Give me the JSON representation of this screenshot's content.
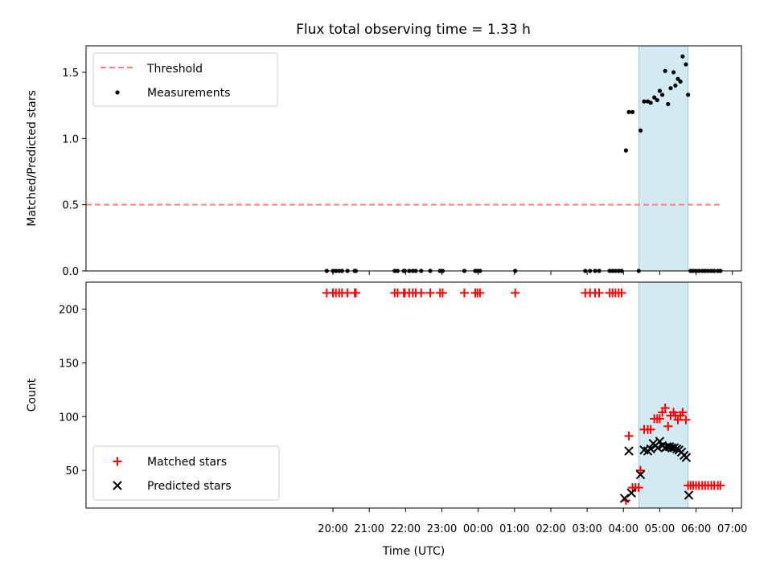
{
  "title": "Flux total observing time = 1.33 h",
  "colors": {
    "threshold": "#ff8080",
    "measurement": "#000000",
    "matched": "#ff0000",
    "predicted": "#000000",
    "span": "#add8e6"
  },
  "chart_data": [
    {
      "type": "scatter",
      "panel": "top",
      "ylabel": "Matched/Predicted stars",
      "xlabel": "",
      "ylim": [
        0,
        1.7
      ],
      "yticks": [
        0.0,
        0.5,
        1.0,
        1.5
      ],
      "ytick_labels": [
        "0.0",
        "0.5",
        "1.0",
        "1.5"
      ],
      "x_unit": "hours since 00:00 UTC",
      "xlim": [
        -10.8,
        7.25
      ],
      "legend_position": "upper-left",
      "highlight_span": [
        4.43,
        5.78
      ],
      "threshold": {
        "name": "Threshold",
        "y": 0.5,
        "x_range": [
          -10.8,
          6.7
        ]
      },
      "series": [
        {
          "name": "Measurements",
          "points": [
            [
              -4.17,
              0
            ],
            [
              -4.0,
              0
            ],
            [
              -3.92,
              0
            ],
            [
              -3.83,
              0
            ],
            [
              -3.75,
              0
            ],
            [
              -3.6,
              0
            ],
            [
              -3.4,
              0
            ],
            [
              -3.37,
              0
            ],
            [
              -2.3,
              0
            ],
            [
              -2.22,
              0
            ],
            [
              -2.05,
              0
            ],
            [
              -2.02,
              0
            ],
            [
              -1.9,
              0
            ],
            [
              -1.8,
              0
            ],
            [
              -1.72,
              0
            ],
            [
              -1.57,
              0
            ],
            [
              -1.32,
              0
            ],
            [
              -1.05,
              0
            ],
            [
              -0.98,
              0
            ],
            [
              -0.38,
              0
            ],
            [
              -0.08,
              0
            ],
            [
              -0.02,
              0
            ],
            [
              0.05,
              0
            ],
            [
              1.02,
              0
            ],
            [
              2.95,
              0
            ],
            [
              3.08,
              0
            ],
            [
              3.22,
              0
            ],
            [
              3.33,
              0
            ],
            [
              3.62,
              0
            ],
            [
              3.7,
              0
            ],
            [
              3.78,
              0
            ],
            [
              3.87,
              0
            ],
            [
              3.95,
              0
            ],
            [
              4.42,
              0
            ],
            [
              4.07,
              0.91
            ],
            [
              4.15,
              1.2
            ],
            [
              4.25,
              1.2
            ],
            [
              4.47,
              1.06
            ],
            [
              4.57,
              1.28
            ],
            [
              4.67,
              1.28
            ],
            [
              4.75,
              1.27
            ],
            [
              4.85,
              1.31
            ],
            [
              4.93,
              1.29
            ],
            [
              5.0,
              1.36
            ],
            [
              5.07,
              1.33
            ],
            [
              5.15,
              1.51
            ],
            [
              5.23,
              1.26
            ],
            [
              5.3,
              1.38
            ],
            [
              5.38,
              1.5
            ],
            [
              5.43,
              1.4
            ],
            [
              5.5,
              1.45
            ],
            [
              5.57,
              1.43
            ],
            [
              5.63,
              1.62
            ],
            [
              5.72,
              1.56
            ],
            [
              5.78,
              1.33
            ],
            [
              5.85,
              0
            ],
            [
              5.92,
              0
            ],
            [
              6.0,
              0
            ],
            [
              6.08,
              0
            ],
            [
              6.17,
              0
            ],
            [
              6.25,
              0
            ],
            [
              6.33,
              0
            ],
            [
              6.42,
              0
            ],
            [
              6.5,
              0
            ],
            [
              6.6,
              0
            ],
            [
              6.67,
              0
            ]
          ]
        }
      ]
    },
    {
      "type": "scatter",
      "panel": "bottom",
      "ylabel": "Count",
      "xlabel": "Time (UTC)",
      "ylim": [
        15,
        225
      ],
      "yticks": [
        50,
        100,
        150,
        200
      ],
      "ytick_labels": [
        "50",
        "100",
        "150",
        "200"
      ],
      "x_unit": "hours since 00:00 UTC",
      "xlim": [
        -10.8,
        7.25
      ],
      "xticks": [
        -4,
        -3,
        -2,
        -1,
        0,
        1,
        2,
        3,
        4,
        5,
        6,
        7
      ],
      "xtick_labels": [
        "20:00",
        "21:00",
        "22:00",
        "23:00",
        "00:00",
        "01:00",
        "02:00",
        "03:00",
        "04:00",
        "05:00",
        "06:00",
        "07:00"
      ],
      "legend_position": "lower-left",
      "highlight_span": [
        4.43,
        5.78
      ],
      "series": [
        {
          "name": "Matched stars",
          "marker": "plus",
          "points": [
            [
              -4.17,
              215
            ],
            [
              -4.0,
              215
            ],
            [
              -3.92,
              215
            ],
            [
              -3.83,
              215
            ],
            [
              -3.75,
              215
            ],
            [
              -3.6,
              215
            ],
            [
              -3.4,
              215
            ],
            [
              -3.37,
              215
            ],
            [
              -2.3,
              215
            ],
            [
              -2.22,
              215
            ],
            [
              -2.05,
              215
            ],
            [
              -2.02,
              215
            ],
            [
              -1.9,
              215
            ],
            [
              -1.8,
              215
            ],
            [
              -1.72,
              215
            ],
            [
              -1.57,
              215
            ],
            [
              -1.32,
              215
            ],
            [
              -1.05,
              215
            ],
            [
              -0.98,
              215
            ],
            [
              -0.38,
              215
            ],
            [
              -0.08,
              215
            ],
            [
              -0.02,
              215
            ],
            [
              0.05,
              215
            ],
            [
              1.02,
              215
            ],
            [
              2.95,
              215
            ],
            [
              3.08,
              215
            ],
            [
              3.22,
              215
            ],
            [
              3.33,
              215
            ],
            [
              3.62,
              215
            ],
            [
              3.7,
              215
            ],
            [
              3.78,
              215
            ],
            [
              3.87,
              215
            ],
            [
              3.95,
              215
            ],
            [
              4.07,
              22
            ],
            [
              4.15,
              82
            ],
            [
              4.25,
              34
            ],
            [
              4.33,
              34
            ],
            [
              4.42,
              34
            ],
            [
              4.47,
              50
            ],
            [
              4.57,
              88
            ],
            [
              4.67,
              88
            ],
            [
              4.75,
              88
            ],
            [
              4.85,
              98
            ],
            [
              4.93,
              98
            ],
            [
              5.0,
              98
            ],
            [
              5.07,
              104
            ],
            [
              5.15,
              108
            ],
            [
              5.23,
              91
            ],
            [
              5.3,
              101
            ],
            [
              5.38,
              104
            ],
            [
              5.43,
              101
            ],
            [
              5.5,
              97
            ],
            [
              5.57,
              101
            ],
            [
              5.63,
              104
            ],
            [
              5.72,
              97
            ],
            [
              5.78,
              36
            ],
            [
              5.85,
              36
            ],
            [
              5.92,
              36
            ],
            [
              6.0,
              36
            ],
            [
              6.08,
              36
            ],
            [
              6.17,
              36
            ],
            [
              6.25,
              36
            ],
            [
              6.33,
              36
            ],
            [
              6.42,
              36
            ],
            [
              6.5,
              36
            ],
            [
              6.6,
              36
            ],
            [
              6.67,
              36
            ]
          ]
        },
        {
          "name": "Predicted stars",
          "marker": "x",
          "points": [
            [
              4.03,
              24
            ],
            [
              4.15,
              68
            ],
            [
              4.22,
              29
            ],
            [
              4.47,
              46
            ],
            [
              4.57,
              69
            ],
            [
              4.67,
              68
            ],
            [
              4.75,
              70
            ],
            [
              4.82,
              75
            ],
            [
              4.88,
              73
            ],
            [
              4.95,
              71
            ],
            [
              5.0,
              77
            ],
            [
              5.07,
              73
            ],
            [
              5.15,
              71
            ],
            [
              5.2,
              72
            ],
            [
              5.27,
              72
            ],
            [
              5.33,
              71
            ],
            [
              5.4,
              71
            ],
            [
              5.47,
              70
            ],
            [
              5.53,
              69
            ],
            [
              5.6,
              67
            ],
            [
              5.67,
              64
            ],
            [
              5.73,
              62
            ],
            [
              5.8,
              27
            ]
          ]
        }
      ]
    }
  ]
}
